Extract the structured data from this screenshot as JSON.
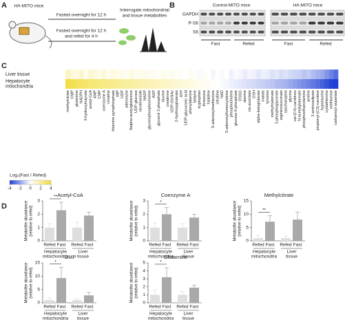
{
  "panel_a": {
    "label": "A",
    "mouse": "HA-MITO mice",
    "fast": "Fasted overnight for 12 h",
    "refed": [
      "Fasted overnight for 12 h",
      "and refed for 4 h"
    ],
    "goal": [
      "Interrogate mitochondrial",
      "and tissue metabolites"
    ]
  },
  "panel_b": {
    "label": "B",
    "groups": [
      "Control-MITO mice",
      "HA-MITO mice"
    ],
    "proteins": [
      "GAPDH",
      "P-S6",
      "S6"
    ],
    "conditions": [
      "Fast",
      "Refed",
      "Fast",
      "Refed"
    ]
  },
  "panel_c": {
    "label": "C",
    "type": "heatmap",
    "rows": [
      [
        "Liver tissue"
      ],
      [
        "Hepatocyte",
        "mitochondria"
      ]
    ],
    "columns": [
      "methylcitrate",
      "GMP",
      "glutamine",
      "NADPH",
      "3-hydroxybutyrate",
      "acetyl-CoA",
      "AMP",
      "CMP",
      "coenzyme A",
      "creatine",
      "thiamine pyrophosphate",
      "IMP",
      "UDP",
      "adenosine",
      "Nalpha-acetylglutamine",
      "UDP-glucose",
      "nicotinamide",
      "NADP",
      "glycerophosphocholine",
      "ADP",
      "glycerol 3-phosphate",
      "taurine",
      "creatinine",
      "UDP-GlcNAc",
      "2-hydroxyglutarate",
      "ATP",
      "UDP-glucuronic acid",
      "phenylalanine",
      "betaine",
      "tryptophan",
      "threonine",
      "histidine",
      "S-adenosylmethionine",
      "citrulline",
      "NAD",
      "S-adenosylhomocysteine",
      "phosphocholine",
      "glucose 6-phosphate",
      "GSSG",
      "alanine",
      "cis-aconitate",
      "GSH",
      "alpha-ketoglutarate",
      "malate",
      "tyrosine",
      "methylmalonate",
      "3-phosphoglycerate",
      "argininosuccinate",
      "saccharopine",
      "glycine",
      "val-(C4)-carnitines",
      "N-acetylglutamate",
      "phosphoethanolamine",
      "proline",
      "2-aminoadipate",
      "propionyl-(C3)-carnitine",
      "hypotaurine",
      "cystathionine",
      "methionine",
      "carbamoyl aspartate"
    ],
    "values": [
      [
        1.2,
        0.8,
        0.6,
        1.0,
        0.4,
        0.9,
        0.7,
        0.5,
        0.8,
        0.3,
        0.6,
        0.4,
        0.5,
        0.2,
        0.6,
        0.3,
        0.4,
        0.5,
        0.2,
        0.3,
        0.1,
        0.4,
        0.2,
        0.3,
        0.1,
        0.2,
        0.0,
        0.3,
        0.1,
        -0.1,
        0.2,
        0.0,
        -0.2,
        0.1,
        -0.1,
        0.0,
        -0.3,
        -0.1,
        -0.2,
        -0.4,
        -0.2,
        -0.3,
        -0.5,
        -0.3,
        -0.4,
        -0.6,
        -0.5,
        -0.7,
        -0.6,
        -0.8,
        -0.9,
        -1.0,
        -1.2,
        -1.1,
        -1.4,
        -1.6,
        -1.8,
        -2.2,
        -2.6,
        -3.0
      ],
      [
        3.8,
        3.5,
        3.3,
        3.1,
        3.0,
        2.8,
        2.7,
        2.6,
        2.5,
        2.4,
        2.3,
        2.2,
        2.1,
        2.0,
        1.9,
        1.8,
        1.7,
        1.6,
        1.5,
        1.4,
        1.3,
        1.2,
        1.1,
        1.0,
        0.9,
        0.8,
        0.7,
        0.6,
        0.5,
        0.4,
        0.3,
        0.2,
        0.1,
        0.0,
        -0.1,
        -0.2,
        -0.3,
        -0.4,
        -0.5,
        -0.6,
        -0.7,
        -0.8,
        -0.9,
        -1.0,
        -1.1,
        -1.2,
        -1.4,
        -1.5,
        -1.6,
        -1.8,
        -2.0,
        -2.2,
        -2.4,
        -2.6,
        -2.8,
        -3.0,
        -3.3,
        -3.6,
        -3.9,
        -4.0
      ]
    ],
    "colorbar": {
      "title": "Log₂(Fast / Refed)",
      "lim": [
        -4,
        4
      ],
      "ticks": [
        -4,
        -2,
        0,
        2,
        4
      ],
      "colors": [
        "#1e3fd4",
        "#ffffff",
        "#f3dc3a"
      ]
    }
  },
  "panel_d": {
    "label": "D",
    "y_label": [
      "Metabolite abundance",
      "(relative to refed)"
    ],
    "categories": [
      "Refed",
      "Fast",
      "Refed",
      "Fast"
    ],
    "colors": [
      "#dedede",
      "#a9a9a9",
      "#dedede",
      "#a9a9a9"
    ],
    "groups": [
      [
        "Hepatocyte",
        "mitochondria"
      ],
      [
        "Liver",
        "tissue"
      ]
    ],
    "charts": [
      {
        "type": "bar",
        "title": "Acetyl-CoA",
        "values": [
          1,
          2.3,
          1,
          1.9
        ],
        "errors": [
          0.3,
          0.6,
          0.4,
          0.25
        ],
        "ylim": [
          0,
          3
        ],
        "yticks": [
          0,
          1,
          2,
          3
        ],
        "significance": "**"
      },
      {
        "type": "bar",
        "title": "Coenzyme A",
        "values": [
          1,
          2.0,
          1,
          1.75
        ],
        "errors": [
          0.35,
          0.5,
          0.3,
          0.25
        ],
        "ylim": [
          0,
          3
        ],
        "yticks": [
          0,
          1,
          2,
          3
        ],
        "significance": "*"
      },
      {
        "type": "bar",
        "title": "Methylcitrate",
        "values": [
          1,
          7.2,
          1,
          8.0
        ],
        "errors": [
          1.0,
          2.3,
          0.7,
          2.8
        ],
        "ylim": [
          0,
          15
        ],
        "yticks": [
          0,
          5,
          10,
          15
        ],
        "significance": "**"
      },
      {
        "type": "bar",
        "title": "GMP",
        "values": [
          1,
          9.3,
          1,
          2.8
        ],
        "errors": [
          0.8,
          4.0,
          0.6,
          1.1
        ],
        "ylim": [
          0,
          15
        ],
        "yticks": [
          0,
          5,
          10,
          15
        ],
        "significance": "*"
      },
      {
        "type": "bar",
        "title": "Glutamine",
        "values": [
          1,
          3.2,
          1,
          1.9
        ],
        "errors": [
          0.6,
          1.2,
          0.4,
          0.3
        ],
        "ylim": [
          0,
          5
        ],
        "yticks": [
          0,
          1,
          2,
          3,
          4,
          5
        ],
        "significance": "*"
      }
    ]
  }
}
